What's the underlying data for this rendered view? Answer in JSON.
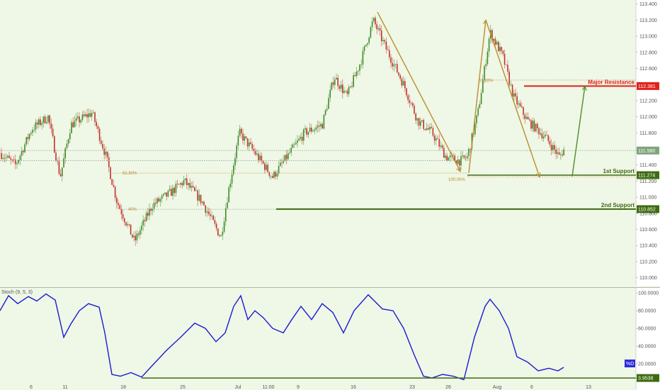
{
  "chart_data": [
    {
      "type": "candlestick",
      "ylim": [
        109.9,
        113.45
      ],
      "yticks": [
        "113.400",
        "113.200",
        "113.000",
        "112.800",
        "112.600",
        "112.400",
        "112.200",
        "112.000",
        "111.800",
        "111.600",
        "111.400",
        "111.200",
        "111.000",
        "110.800",
        "110.600",
        "110.400",
        "110.200",
        "110.000"
      ],
      "xticks": [
        "6",
        "11",
        "18",
        "25",
        "Jul",
        "11:00",
        "9",
        "16",
        "23",
        "26",
        "Aug",
        "6",
        "13"
      ],
      "price_labels": [
        {
          "text": "112.381",
          "value": 112.381,
          "color": "#e0201c"
        },
        {
          "text": "111.580",
          "value": 111.58,
          "color": "#7fa37a"
        },
        {
          "text": "111.274",
          "value": 111.274,
          "color": "#3e6b10"
        },
        {
          "text": "110.852",
          "value": 110.852,
          "color": "#3e6b10"
        }
      ],
      "annotations": [
        {
          "text": "Major Resistance",
          "value": 112.381,
          "color": "#e0201c"
        },
        {
          "text": "1st Support",
          "value": 111.274,
          "color": "#3e6b10"
        },
        {
          "text": "2nd Support",
          "value": 110.852,
          "color": "#3e6b10"
        }
      ],
      "fib_labels": [
        "61.80%",
        "100.00%",
        "40%",
        "61.80%"
      ],
      "colors": {
        "up": "#3d8a2a",
        "down": "#c0312a",
        "arrow": "#b98f2c",
        "support": "#3e6b10",
        "resistance": "#e0201c"
      }
    },
    {
      "type": "line",
      "title": "Stoch (9, 5, 3)",
      "ylim": [
        0,
        105
      ],
      "yticks": [
        "100.0000",
        "80.0000",
        "60.0000",
        "40.0000",
        "20.0000"
      ],
      "legend": "%D",
      "value_label": "3.9538",
      "series": [
        {
          "name": "%D",
          "color": "#1a1ad4"
        }
      ]
    }
  ]
}
